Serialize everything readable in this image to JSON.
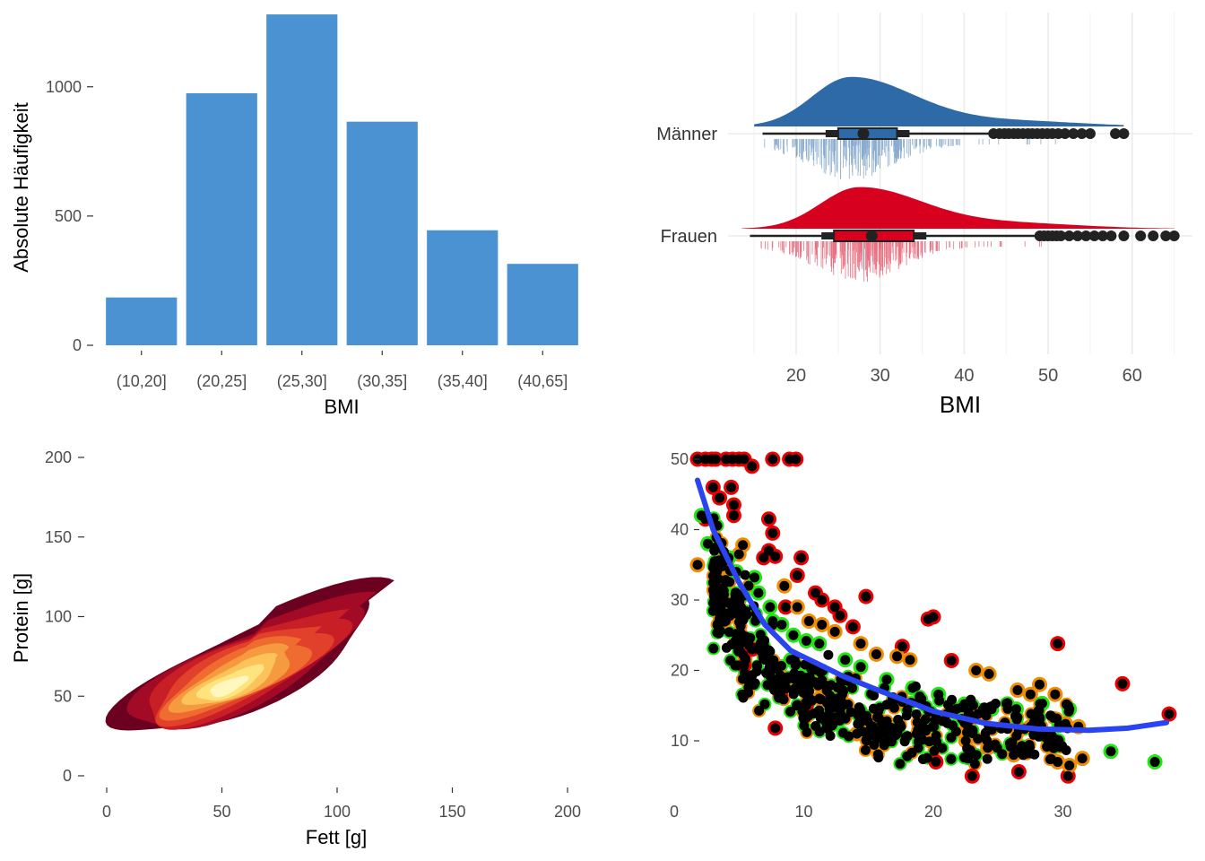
{
  "chart_data": [
    {
      "type": "bar",
      "xlabel": "BMI",
      "ylabel": "Absolute Häufigkeit",
      "categories": [
        "(10,20]",
        "(20,25]",
        "(25,30]",
        "(30,35]",
        "(35,40]",
        "(40,65]"
      ],
      "values": [
        185,
        975,
        1280,
        865,
        445,
        315
      ],
      "ylim": [
        0,
        1300
      ],
      "yticks": [
        "0",
        "500",
        "1000"
      ],
      "color": "#4a92d2",
      "grid": false
    },
    {
      "type": "raincloud",
      "xlabel": "BMI",
      "xticks": [
        "20",
        "30",
        "40",
        "50",
        "60"
      ],
      "xlim": [
        14,
        66
      ],
      "groups": [
        {
          "name": "Männer",
          "color": "#2e6aa8",
          "density_peak": 26.5,
          "whisker": [
            16,
            43
          ],
          "box": [
            25,
            32
          ],
          "median": 28,
          "outliers": [
            43.5,
            44.2,
            44.8,
            45.3,
            45.9,
            46.4,
            47.0,
            47.6,
            48.1,
            48.7,
            49.3,
            49.9,
            50.5,
            51.2,
            52.0,
            53.0,
            54.0,
            55.0,
            58.0,
            59.0
          ]
        },
        {
          "name": "Frauen",
          "color": "#d7001f",
          "density_peak": 27.5,
          "whisker": [
            14.5,
            48.5
          ],
          "box": [
            24.5,
            34
          ],
          "median": 29,
          "outliers": [
            49,
            49.5,
            50,
            50.5,
            51,
            51.5,
            52.5,
            53.5,
            54.5,
            55.5,
            56.5,
            57.5,
            59,
            61,
            62.5,
            64,
            65
          ]
        }
      ],
      "grid": true
    },
    {
      "type": "density2d",
      "xlabel": "Fett [g]",
      "ylabel": "Protein [g]",
      "xlim": [
        0,
        200
      ],
      "ylim": [
        0,
        200
      ],
      "xticks": [
        "0",
        "50",
        "100",
        "150",
        "200"
      ],
      "yticks": [
        "0",
        "50",
        "100",
        "150",
        "200"
      ],
      "peak": [
        52,
        55
      ],
      "levels": 9,
      "palette": [
        "#6b0020",
        "#a30a26",
        "#c81e25",
        "#e1402a",
        "#ef6b2f",
        "#f69a3f",
        "#fbc35a",
        "#fde47f",
        "#fff7bd"
      ]
    },
    {
      "type": "scatter",
      "xlim": [
        0,
        38.5
      ],
      "ylim": [
        4,
        51
      ],
      "xticks": [
        "0",
        "10",
        "20",
        "30"
      ],
      "yticks": [
        "10",
        "20",
        "30",
        "40",
        "50"
      ],
      "outline_colors": {
        "green": "#22e514",
        "orange": "#f08c00",
        "red": "#ee0000"
      },
      "fill_color": "#000000",
      "trend_color": "#2a44f2",
      "trend": [
        [
          1.8,
          47
        ],
        [
          3,
          40
        ],
        [
          5,
          32.5
        ],
        [
          7,
          26.5
        ],
        [
          9,
          22.8
        ],
        [
          11,
          21
        ],
        [
          13,
          19.2
        ],
        [
          16,
          17
        ],
        [
          20,
          14.2
        ],
        [
          24,
          12.5
        ],
        [
          28,
          11.7
        ],
        [
          32,
          11.5
        ],
        [
          35,
          11.8
        ],
        [
          38,
          12.6
        ]
      ],
      "highlight_points": [
        [
          1.8,
          50,
          "red"
        ],
        [
          2.4,
          50,
          "red"
        ],
        [
          2.9,
          50,
          "red"
        ],
        [
          3.2,
          50,
          "red"
        ],
        [
          4,
          50,
          "red"
        ],
        [
          4.5,
          50,
          "red"
        ],
        [
          5,
          50,
          "red"
        ],
        [
          5.4,
          50,
          "red"
        ],
        [
          7.6,
          50,
          "red"
        ],
        [
          8.9,
          50,
          "red"
        ],
        [
          9.4,
          50,
          "red"
        ],
        [
          6,
          49,
          "red"
        ],
        [
          3,
          46,
          "red"
        ],
        [
          4.4,
          46,
          "red"
        ],
        [
          3.5,
          44.5,
          "red"
        ],
        [
          4.6,
          43.5,
          "red"
        ],
        [
          2.4,
          41.5,
          "red"
        ],
        [
          4.6,
          42,
          "red"
        ],
        [
          7.3,
          41.5,
          "red"
        ],
        [
          7.6,
          39.5,
          "red"
        ],
        [
          7.3,
          37,
          "red"
        ],
        [
          6.9,
          36,
          "red"
        ],
        [
          7.8,
          36.2,
          "red"
        ],
        [
          9.8,
          36,
          "red"
        ],
        [
          9.5,
          33.5,
          "red"
        ],
        [
          10.9,
          31,
          "red"
        ],
        [
          11.4,
          30,
          "red"
        ],
        [
          14.8,
          30.5,
          "red"
        ],
        [
          12.4,
          29,
          "red"
        ],
        [
          8.6,
          29,
          "red"
        ],
        [
          12.8,
          27.8,
          "red"
        ],
        [
          13.8,
          26.2,
          "red"
        ],
        [
          19.6,
          27.3,
          "red"
        ],
        [
          20.0,
          27.6,
          "red"
        ],
        [
          5.1,
          24.6,
          "red"
        ],
        [
          6.0,
          23,
          "red"
        ],
        [
          17.6,
          23.4,
          "red"
        ],
        [
          21.4,
          21.4,
          "red"
        ],
        [
          29.6,
          23.8,
          "red"
        ],
        [
          34.6,
          18.1,
          "red"
        ],
        [
          38.2,
          13.8,
          "red"
        ],
        [
          7.8,
          11.8,
          "red"
        ],
        [
          10.2,
          15,
          "red"
        ],
        [
          20.2,
          7,
          "red"
        ],
        [
          23.0,
          5,
          "red"
        ],
        [
          26.6,
          5.6,
          "red"
        ],
        [
          30.4,
          5,
          "red"
        ],
        [
          5.4,
          20.7,
          "red"
        ],
        [
          8.2,
          16.6,
          "red"
        ],
        [
          1.8,
          35,
          "orange"
        ],
        [
          3.4,
          33,
          "orange"
        ],
        [
          4.3,
          34.2,
          "orange"
        ],
        [
          5.0,
          36.5,
          "orange"
        ],
        [
          5.3,
          37.8,
          "orange"
        ],
        [
          8.5,
          32,
          "orange"
        ],
        [
          9.5,
          29,
          "orange"
        ],
        [
          10.4,
          27,
          "orange"
        ],
        [
          11.4,
          26.5,
          "orange"
        ],
        [
          12.4,
          25.5,
          "orange"
        ],
        [
          14.4,
          23.8,
          "orange"
        ],
        [
          15.6,
          22.3,
          "orange"
        ],
        [
          17.2,
          22,
          "orange"
        ],
        [
          18.2,
          21.5,
          "orange"
        ],
        [
          23.3,
          20,
          "orange"
        ],
        [
          24.3,
          19.5,
          "orange"
        ],
        [
          26.5,
          17.2,
          "orange"
        ],
        [
          27.5,
          16.6,
          "orange"
        ],
        [
          28.2,
          18,
          "orange"
        ],
        [
          29.4,
          16.6,
          "orange"
        ],
        [
          30.2,
          12.4,
          "orange"
        ],
        [
          31.2,
          12,
          "orange"
        ],
        [
          26.6,
          11.5,
          "orange"
        ],
        [
          27.5,
          12,
          "orange"
        ],
        [
          29.6,
          7,
          "orange"
        ],
        [
          30.5,
          6.5,
          "orange"
        ],
        [
          31.5,
          7.5,
          "orange"
        ],
        [
          22.5,
          10,
          "orange"
        ],
        [
          24.2,
          9,
          "orange"
        ],
        [
          26.2,
          8,
          "orange"
        ],
        [
          14.1,
          11,
          "orange"
        ],
        [
          15.1,
          11.5,
          "orange"
        ],
        [
          11.2,
          16,
          "orange"
        ],
        [
          12.6,
          15,
          "orange"
        ],
        [
          2.1,
          42,
          "green"
        ],
        [
          2.6,
          38,
          "green"
        ],
        [
          3.2,
          37.5,
          "green"
        ],
        [
          4.2,
          36,
          "green"
        ],
        [
          4.8,
          34,
          "green"
        ],
        [
          6.5,
          31,
          "green"
        ],
        [
          7.4,
          29,
          "green"
        ],
        [
          8.3,
          26.5,
          "green"
        ],
        [
          9.2,
          25,
          "green"
        ],
        [
          10.2,
          24.2,
          "green"
        ],
        [
          11.2,
          23.8,
          "green"
        ],
        [
          13.2,
          21.5,
          "green"
        ],
        [
          14.4,
          20.5,
          "green"
        ],
        [
          16.4,
          18.7,
          "green"
        ],
        [
          18.4,
          17.5,
          "green"
        ],
        [
          20.4,
          16.6,
          "green"
        ],
        [
          22.4,
          15.2,
          "green"
        ],
        [
          24.5,
          14.5,
          "green"
        ],
        [
          26.4,
          14.5,
          "green"
        ],
        [
          28.4,
          15.3,
          "green"
        ],
        [
          30.5,
          14.5,
          "green"
        ],
        [
          29.7,
          12.2,
          "green"
        ],
        [
          33.7,
          8.5,
          "green"
        ],
        [
          37.1,
          7,
          "green"
        ],
        [
          13.4,
          18.5,
          "green"
        ],
        [
          10.6,
          20.2,
          "green"
        ],
        [
          9.0,
          21.5,
          "green"
        ],
        [
          7.6,
          27.0,
          "green"
        ],
        [
          6.2,
          33.2,
          "green"
        ]
      ]
    }
  ]
}
